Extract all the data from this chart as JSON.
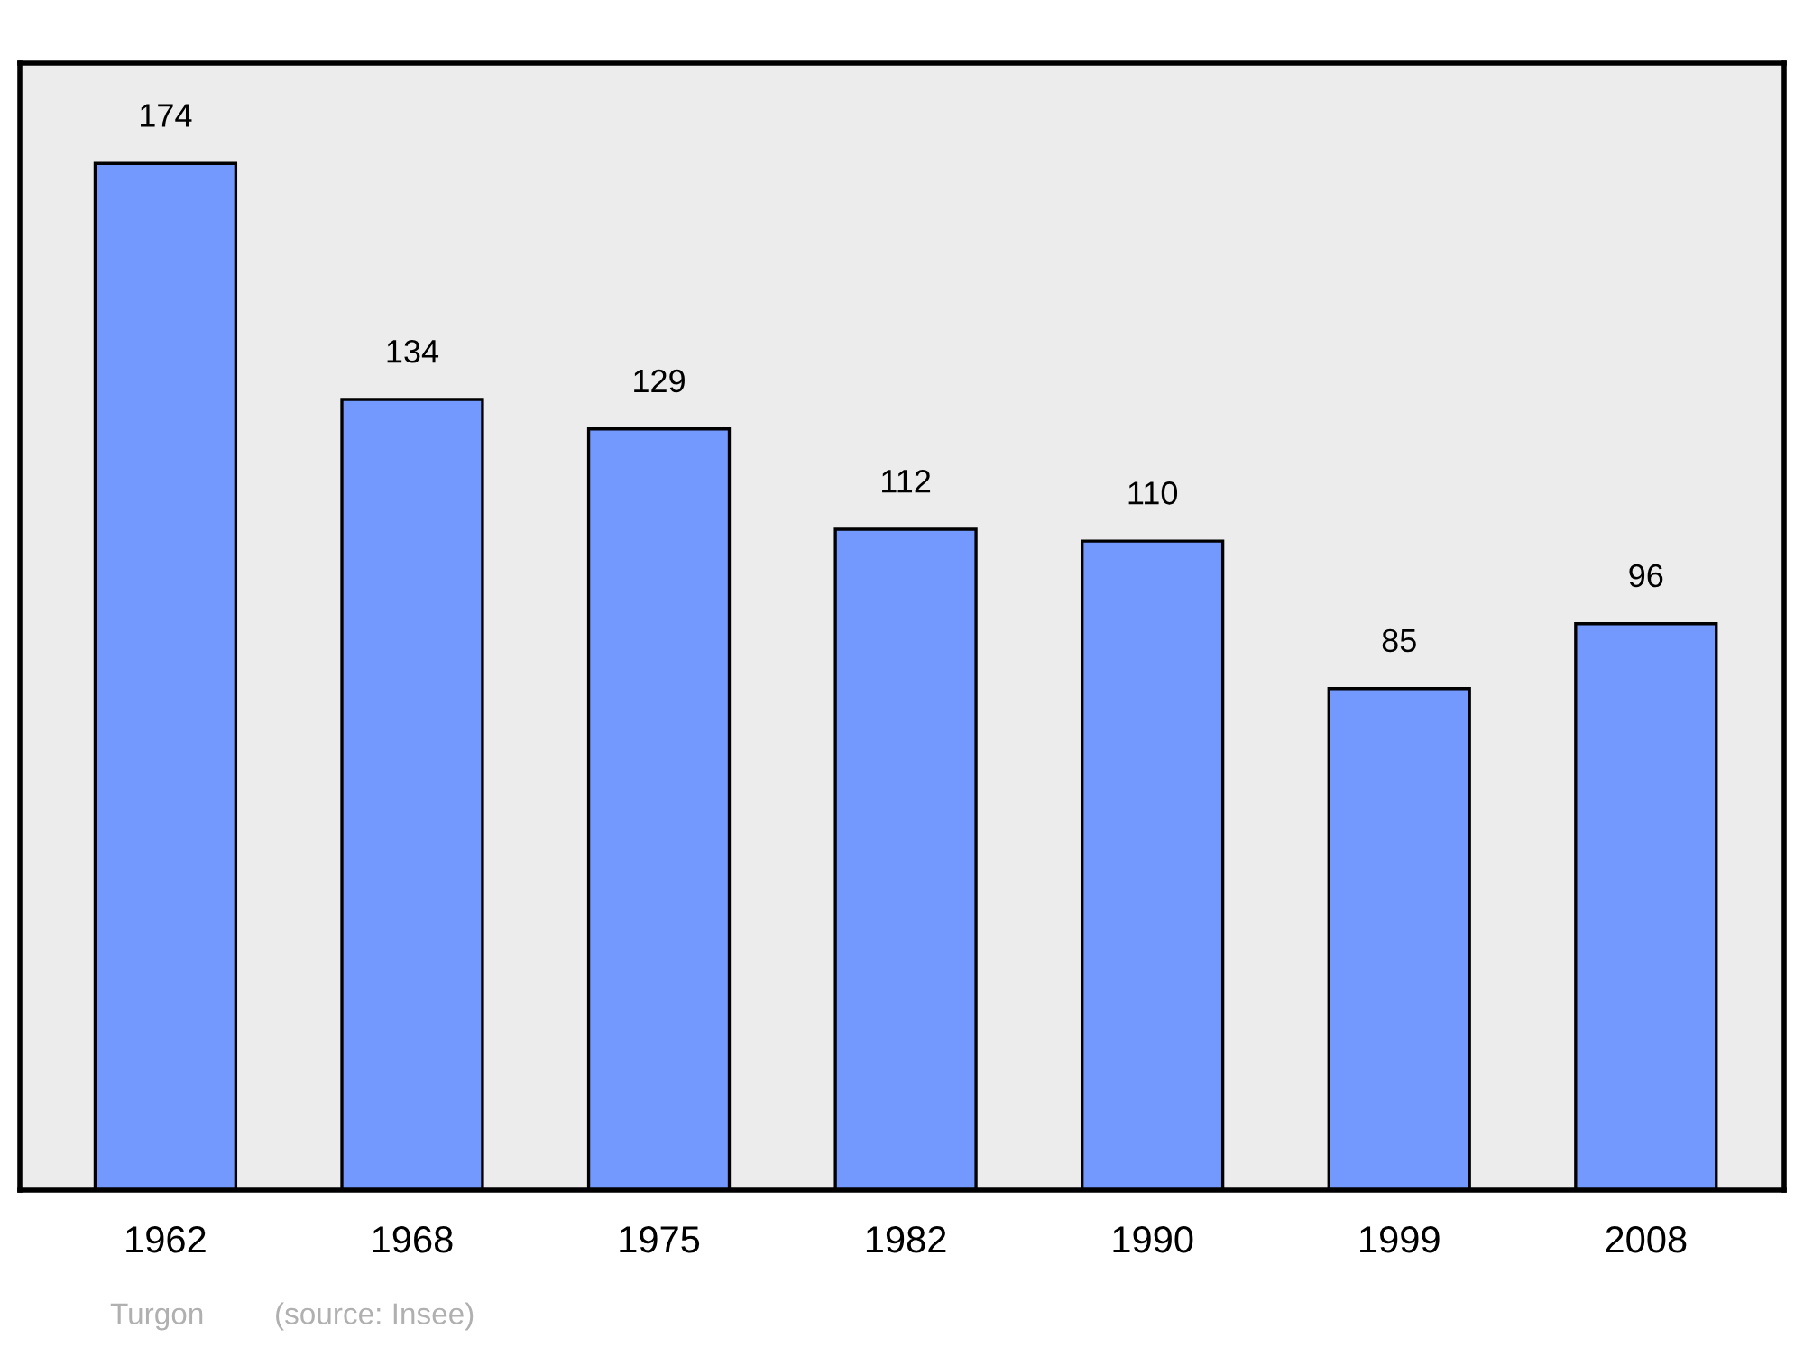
{
  "chart_data": {
    "type": "bar",
    "categories": [
      "1962",
      "1968",
      "1975",
      "1982",
      "1990",
      "1999",
      "2008"
    ],
    "values": [
      174,
      134,
      129,
      112,
      110,
      85,
      96
    ],
    "color": "#7399ff",
    "data_labels": true,
    "ylim": [
      0,
      191
    ],
    "grid": false,
    "legend": false,
    "annotations": [
      "Turgon",
      "(source: Insee)"
    ]
  }
}
